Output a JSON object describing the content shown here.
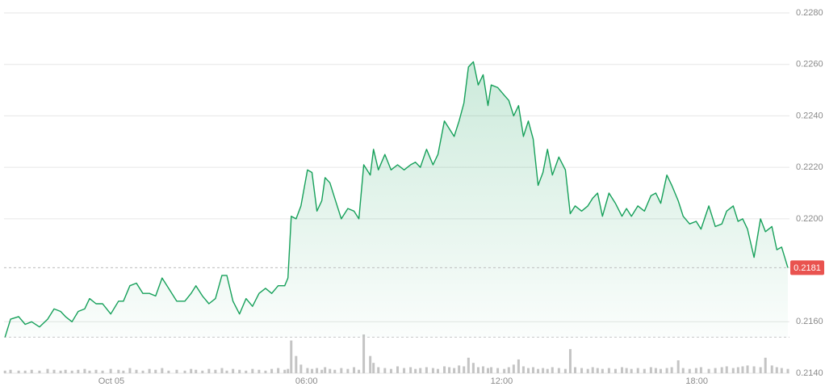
{
  "chart_data": {
    "type": "line",
    "color": "#16a05a",
    "volume_color": "#c4c4c4",
    "grid": true,
    "xlim": [
      -3.3,
      20.85
    ],
    "xticks": [
      {
        "value": 0,
        "label": "Oct 05"
      },
      {
        "value": 6,
        "label": "06:00"
      },
      {
        "value": 12,
        "label": "12:00"
      },
      {
        "value": 18,
        "label": "18:00"
      }
    ],
    "ylim": [
      0.214,
      0.228
    ],
    "yticks": [
      {
        "value": 0.214,
        "label": "0.2140"
      },
      {
        "value": 0.216,
        "label": "0.2160"
      },
      {
        "value": 0.22,
        "label": "0.2200"
      },
      {
        "value": 0.222,
        "label": "0.2220"
      },
      {
        "value": 0.224,
        "label": "0.2240"
      },
      {
        "value": 0.226,
        "label": "0.2260"
      },
      {
        "value": 0.228,
        "label": "0.2280"
      }
    ],
    "last_price": 0.2181,
    "baseline": 0.2154,
    "x": [
      -3.27,
      -3.1,
      -2.85,
      -2.65,
      -2.45,
      -2.21,
      -1.96,
      -1.76,
      -1.56,
      -1.41,
      -1.21,
      -1.02,
      -0.82,
      -0.67,
      -0.47,
      -0.27,
      -0.02,
      0.22,
      0.37,
      0.57,
      0.77,
      0.97,
      1.17,
      1.36,
      1.56,
      1.76,
      2.01,
      2.26,
      2.45,
      2.6,
      2.8,
      3.0,
      3.2,
      3.4,
      3.55,
      3.74,
      3.94,
      4.14,
      4.34,
      4.54,
      4.74,
      4.93,
      5.13,
      5.33,
      5.43,
      5.53,
      5.68,
      5.83,
      6.03,
      6.17,
      6.32,
      6.47,
      6.57,
      6.72,
      6.87,
      7.07,
      7.27,
      7.46,
      7.61,
      7.76,
      7.96,
      8.06,
      8.21,
      8.41,
      8.6,
      8.8,
      9.0,
      9.2,
      9.35,
      9.5,
      9.69,
      9.89,
      10.04,
      10.24,
      10.39,
      10.54,
      10.69,
      10.84,
      10.98,
      11.13,
      11.28,
      11.43,
      11.58,
      11.68,
      11.88,
      12.08,
      12.22,
      12.37,
      12.52,
      12.67,
      12.82,
      12.97,
      13.12,
      13.27,
      13.41,
      13.56,
      13.76,
      13.96,
      14.11,
      14.26,
      14.46,
      14.65,
      14.8,
      14.95,
      15.1,
      15.3,
      15.5,
      15.7,
      15.84,
      15.99,
      16.19,
      16.39,
      16.59,
      16.74,
      16.89,
      17.08,
      17.23,
      17.43,
      17.58,
      17.78,
      17.98,
      18.13,
      18.37,
      18.57,
      18.77,
      18.92,
      19.12,
      19.27,
      19.41,
      19.56,
      19.76,
      19.96,
      20.11,
      20.31,
      20.46,
      20.61,
      20.8
    ],
    "values": [
      0.2154,
      0.2161,
      0.2162,
      0.2159,
      0.216,
      0.2158,
      0.2161,
      0.2165,
      0.2164,
      0.2162,
      0.216,
      0.2164,
      0.2165,
      0.2169,
      0.2167,
      0.2167,
      0.2163,
      0.2168,
      0.2168,
      0.2174,
      0.2175,
      0.2171,
      0.2171,
      0.217,
      0.2177,
      0.2173,
      0.2168,
      0.2168,
      0.2171,
      0.2174,
      0.217,
      0.2167,
      0.2169,
      0.2178,
      0.2178,
      0.2168,
      0.2163,
      0.2169,
      0.2166,
      0.2171,
      0.2173,
      0.2171,
      0.2174,
      0.2174,
      0.2177,
      0.2201,
      0.22,
      0.2205,
      0.2219,
      0.2218,
      0.2203,
      0.2207,
      0.2216,
      0.2214,
      0.2208,
      0.22,
      0.2204,
      0.2203,
      0.22,
      0.2221,
      0.2217,
      0.2227,
      0.2219,
      0.2225,
      0.2219,
      0.2221,
      0.2219,
      0.2221,
      0.2222,
      0.222,
      0.2227,
      0.2221,
      0.2225,
      0.2238,
      0.2235,
      0.2232,
      0.2238,
      0.2245,
      0.2259,
      0.2261,
      0.2252,
      0.2256,
      0.2244,
      0.2252,
      0.2251,
      0.2248,
      0.2246,
      0.224,
      0.2244,
      0.2232,
      0.2238,
      0.2231,
      0.2213,
      0.2218,
      0.2227,
      0.2217,
      0.2224,
      0.2219,
      0.2202,
      0.2205,
      0.2203,
      0.2205,
      0.2208,
      0.221,
      0.2201,
      0.221,
      0.2206,
      0.2201,
      0.2204,
      0.2201,
      0.2205,
      0.2203,
      0.2209,
      0.221,
      0.2206,
      0.2217,
      0.2213,
      0.2207,
      0.2201,
      0.2198,
      0.2199,
      0.2196,
      0.2205,
      0.2197,
      0.2198,
      0.2203,
      0.2205,
      0.2199,
      0.22,
      0.2196,
      0.2185,
      0.22,
      0.2195,
      0.2197,
      0.2188,
      0.2189,
      0.2181
    ],
    "volume": [
      3,
      4,
      3,
      3,
      4,
      3,
      5,
      4,
      3,
      4,
      3,
      4,
      5,
      3,
      4,
      3,
      5,
      4,
      3,
      6,
      4,
      3,
      5,
      4,
      6,
      3,
      4,
      3,
      5,
      4,
      3,
      5,
      4,
      6,
      3,
      5,
      4,
      3,
      5,
      4,
      3,
      5,
      6,
      4,
      5,
      38,
      20,
      10,
      6,
      5,
      6,
      4,
      7,
      5,
      4,
      6,
      5,
      7,
      4,
      45,
      20,
      12,
      7,
      6,
      5,
      8,
      6,
      7,
      5,
      6,
      7,
      6,
      5,
      8,
      7,
      6,
      9,
      8,
      18,
      12,
      7,
      8,
      6,
      7,
      6,
      5,
      7,
      10,
      16,
      8,
      6,
      7,
      5,
      6,
      5,
      7,
      6,
      5,
      28,
      7,
      6,
      5,
      7,
      6,
      5,
      6,
      5,
      7,
      6,
      5,
      6,
      5,
      7,
      6,
      5,
      6,
      7,
      15,
      6,
      5,
      6,
      7,
      5,
      6,
      7,
      8,
      6,
      7,
      8,
      9,
      8,
      7,
      18,
      9,
      7,
      6,
      5
    ]
  }
}
